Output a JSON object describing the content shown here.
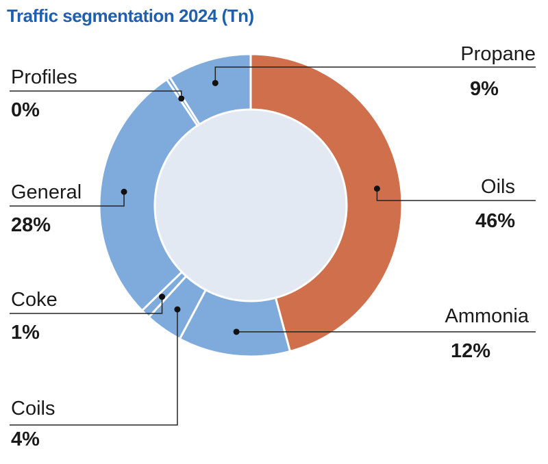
{
  "chart_data": {
    "type": "pie",
    "subtype": "donut",
    "title": "Traffic segmentation 2024 (Tn)",
    "slices": [
      {
        "label": "Oils",
        "value": 46,
        "value_label": "46%",
        "color": "#cf6f4b"
      },
      {
        "label": "Ammonia",
        "value": 12,
        "value_label": "12%",
        "color": "#7eaadc"
      },
      {
        "label": "Coils",
        "value": 4,
        "value_label": "4%",
        "color": "#7eaadc"
      },
      {
        "label": "Coke",
        "value": 1,
        "value_label": "1%",
        "color": "#7eaadc"
      },
      {
        "label": "General",
        "value": 28,
        "value_label": "28%",
        "color": "#7eaadc"
      },
      {
        "label": "Profiles",
        "value": 0.4,
        "value_label": "0%",
        "color": "#7eaadc"
      },
      {
        "label": "Propane",
        "value": 9,
        "value_label": "9%",
        "color": "#7eaadc"
      }
    ],
    "center_color": "#e3e9f2",
    "title_color": "#1f5fae",
    "legend": "callout-labels"
  }
}
